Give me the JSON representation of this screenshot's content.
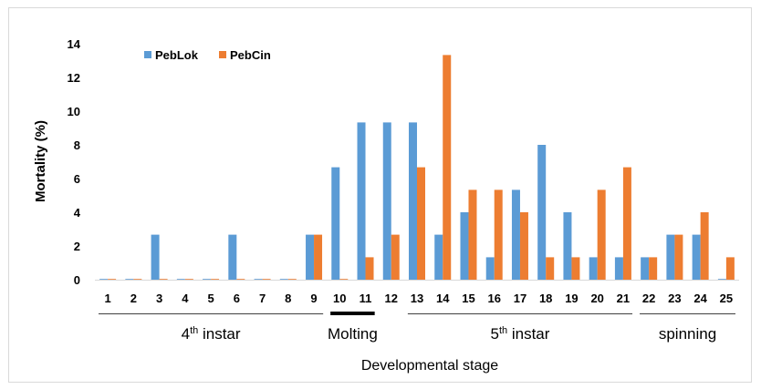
{
  "chart_data": {
    "type": "bar",
    "title": "",
    "xlabel": "Developmental stage",
    "ylabel": "Mortality (%)",
    "ylim": [
      0,
      14
    ],
    "yticks": [
      0,
      2,
      4,
      6,
      8,
      10,
      12,
      14
    ],
    "categories": [
      "1",
      "2",
      "3",
      "4",
      "5",
      "6",
      "7",
      "8",
      "9",
      "10",
      "11",
      "12",
      "13",
      "14",
      "15",
      "16",
      "17",
      "18",
      "19",
      "20",
      "21",
      "22",
      "23",
      "24",
      "25"
    ],
    "series": [
      {
        "name": "PebLok",
        "color": "#5b9bd5",
        "values": [
          0,
          0,
          2.67,
          0,
          0,
          2.67,
          0,
          0,
          2.67,
          6.67,
          9.33,
          9.33,
          9.33,
          2.67,
          4,
          1.33,
          5.33,
          8,
          4,
          1.33,
          1.33,
          1.33,
          2.67,
          2.67,
          0
        ]
      },
      {
        "name": "PebCin",
        "color": "#ed7d31",
        "values": [
          0,
          0,
          0,
          0,
          0,
          0,
          0,
          0,
          2.67,
          0,
          1.33,
          2.67,
          6.67,
          13.33,
          5.33,
          5.33,
          4,
          1.33,
          1.33,
          5.33,
          6.67,
          1.33,
          2.67,
          4,
          1.33
        ]
      }
    ],
    "legend": "top-left",
    "grid": false,
    "stage_groups": [
      {
        "label_pre": "4",
        "label_sup": "th",
        "label_post": " instar",
        "from": "1",
        "to": "9",
        "bold_line": false
      },
      {
        "label_pre": "Molting",
        "label_sup": "",
        "label_post": "",
        "from": "10",
        "to": "11",
        "bold_line": true
      },
      {
        "label_pre": "5",
        "label_sup": "th",
        "label_post": " instar",
        "from": "13",
        "to": "21",
        "bold_line": false
      },
      {
        "label_pre": "spinning",
        "label_sup": "",
        "label_post": "",
        "from": "22",
        "to": "25",
        "bold_line": false
      }
    ]
  }
}
